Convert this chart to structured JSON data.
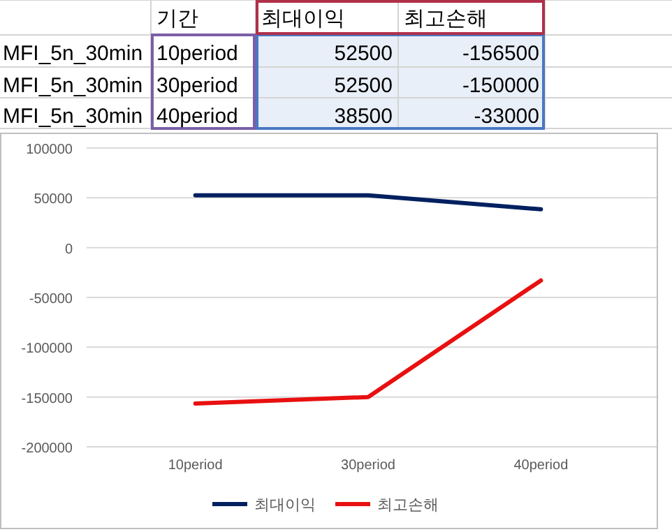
{
  "chart_data": [
    {
      "type": "other",
      "annotations": [
        "기간",
        "최대이익",
        "최고손해",
        "MFI_5n_30min",
        "10period",
        "52500",
        "-156500",
        "MFI_5n_30min",
        "30period",
        "52500",
        "-150000",
        "MFI_5n_30min",
        "40period",
        "38500",
        "-33000"
      ]
    },
    {
      "type": "line",
      "categories": [
        "10period",
        "30period",
        "40period"
      ],
      "series": [
        {
          "name": "최대이익",
          "color": "#002060",
          "values": [
            52500,
            52500,
            38500
          ]
        },
        {
          "name": "최고손해",
          "color": "#e81010",
          "values": [
            -156500,
            -150000,
            -33000
          ]
        }
      ],
      "ylim": [
        -200000,
        100000
      ],
      "yticks": [
        -200000,
        -150000,
        -100000,
        -50000,
        0,
        50000,
        100000
      ],
      "grid": "y",
      "legend": "bottom",
      "line_style": "solid"
    }
  ]
}
